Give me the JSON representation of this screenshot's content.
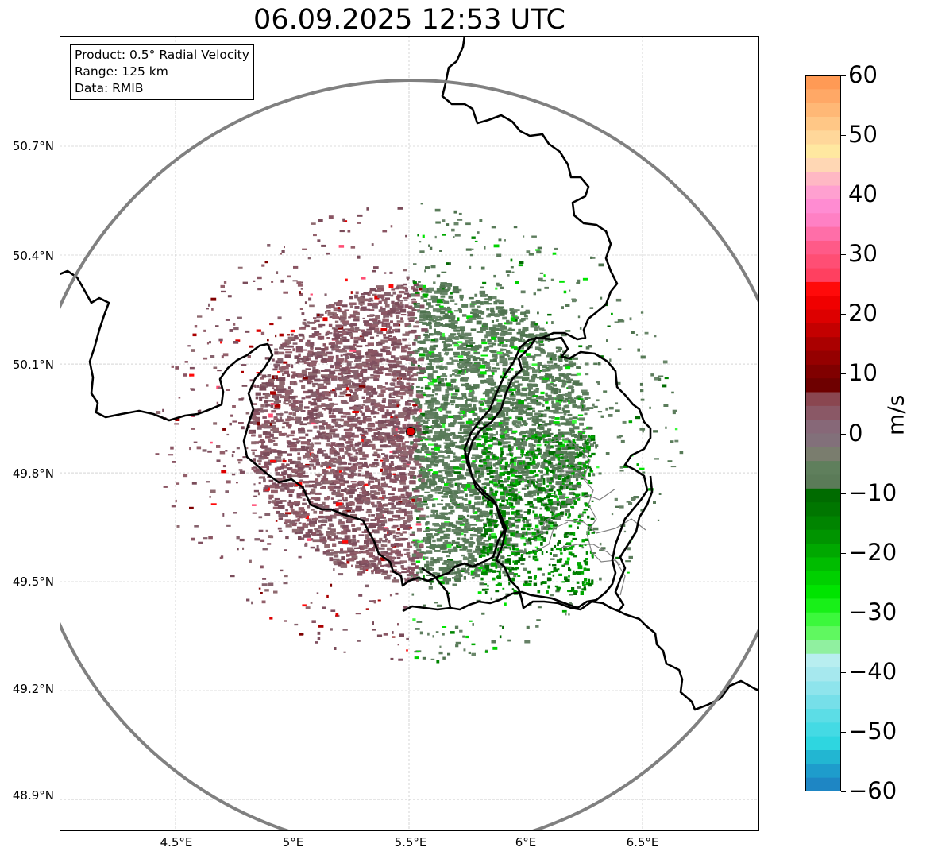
{
  "title": "06.09.2025 12:53 UTC",
  "info_box": {
    "product": "Product: 0.5° Radial Velocity",
    "range": "Range: 125 km",
    "source": "Data: RMIB"
  },
  "map": {
    "lat_labels": [
      "50.7°N",
      "50.4°N",
      "50.1°N",
      "49.8°N",
      "49.5°N",
      "49.2°N",
      "48.9°N"
    ],
    "lon_labels": [
      "4.5°E",
      "5°E",
      "5.5°E",
      "6°E",
      "6.5°E"
    ],
    "lat_values": [
      50.7,
      50.4,
      50.1,
      49.8,
      49.5,
      49.2,
      48.9
    ],
    "lon_values": [
      4.5,
      5.0,
      5.5,
      6.0,
      6.5
    ],
    "radar_site": {
      "lon": 5.505,
      "lat": 49.914
    },
    "range_ring_km": 125,
    "colors": {
      "range_ring": "#808080",
      "border": "#000000",
      "admin_border": "#808080",
      "grid": "#bbbbbb",
      "receding": "#8a5563",
      "approaching": "#5e7d5e",
      "radar_marker": "#dd0000"
    }
  },
  "colorbar": {
    "label": "m/s",
    "ticks": [
      "60",
      "50",
      "40",
      "30",
      "20",
      "10",
      "0",
      "−10",
      "−20",
      "−30",
      "−40",
      "−50",
      "−60"
    ],
    "min": -60,
    "max": 60,
    "colors_top_to_bottom": [
      "#ff9a55",
      "#ffa866",
      "#ffb876",
      "#ffc786",
      "#ffd79a",
      "#ffe8a0",
      "#ffd7b4",
      "#ffb8c4",
      "#ffa0d0",
      "#ff8cd2",
      "#ff80c4",
      "#ff6ea8",
      "#ff5a88",
      "#ff4e74",
      "#ff4060",
      "#ff0a0a",
      "#f00000",
      "#dd0000",
      "#c40000",
      "#aa0000",
      "#950000",
      "#800000",
      "#6e0000",
      "#8a4650",
      "#8a5866",
      "#876878",
      "#82707a",
      "#7a7d6e",
      "#5f7f5c",
      "#5b7b58",
      "#006b00",
      "#007600",
      "#008400",
      "#009400",
      "#00a800",
      "#00bc00",
      "#00d000",
      "#00e400",
      "#18f018",
      "#3cf83c",
      "#60f860",
      "#90f0a0",
      "#b8eef0",
      "#a6e8ee",
      "#8ee4ec",
      "#76dfe9",
      "#5cdde6",
      "#44dae4",
      "#2ed6e0",
      "#22b6d2",
      "#1e9ccc",
      "#1e86c4"
    ]
  }
}
